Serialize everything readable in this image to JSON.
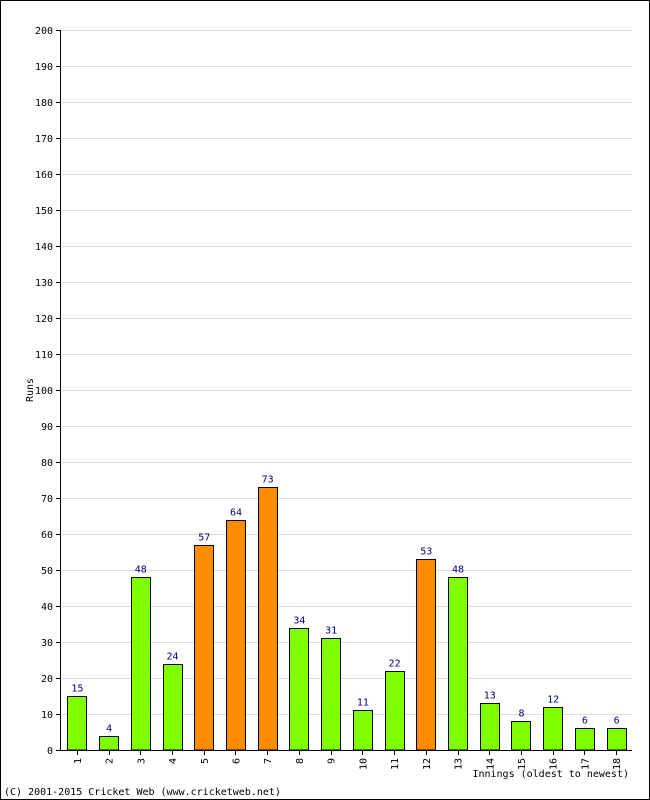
{
  "chart_data": {
    "type": "bar",
    "title": "",
    "xlabel": "Innings (oldest to newest)",
    "ylabel": "Runs",
    "ylim": [
      0,
      200
    ],
    "y_ticks": [
      0,
      10,
      20,
      30,
      40,
      50,
      60,
      70,
      80,
      90,
      100,
      110,
      120,
      130,
      140,
      150,
      160,
      170,
      180,
      190,
      200
    ],
    "grid": true,
    "categories": [
      "1",
      "2",
      "3",
      "4",
      "5",
      "6",
      "7",
      "8",
      "9",
      "10",
      "11",
      "12",
      "13",
      "14",
      "15",
      "16",
      "17",
      "18"
    ],
    "values": [
      15,
      4,
      48,
      24,
      57,
      64,
      73,
      34,
      31,
      11,
      22,
      53,
      48,
      13,
      8,
      12,
      6,
      6
    ],
    "bar_colors": [
      "#80ff00",
      "#80ff00",
      "#80ff00",
      "#80ff00",
      "#ff8c00",
      "#ff8c00",
      "#ff8c00",
      "#80ff00",
      "#80ff00",
      "#80ff00",
      "#80ff00",
      "#ff8c00",
      "#80ff00",
      "#80ff00",
      "#80ff00",
      "#80ff00",
      "#80ff00",
      "#80ff00"
    ]
  },
  "footer": {
    "copyright": "(C) 2001-2015 Cricket Web (www.cricketweb.net)"
  }
}
